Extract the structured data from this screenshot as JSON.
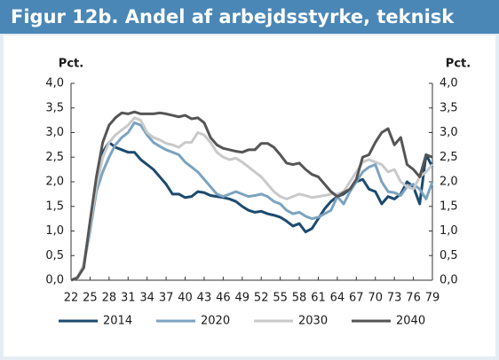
{
  "chart_data": {
    "type": "line",
    "title": "Figur 12b. Andel af arbejdsstyrke, teknisk",
    "y_label": "Pct.",
    "y2_label": "Pct.",
    "x": [
      22,
      23,
      24,
      25,
      26,
      27,
      28,
      29,
      30,
      31,
      32,
      33,
      34,
      35,
      36,
      37,
      38,
      39,
      40,
      41,
      42,
      43,
      44,
      45,
      46,
      47,
      48,
      49,
      50,
      51,
      52,
      53,
      54,
      55,
      56,
      57,
      58,
      59,
      60,
      61,
      62,
      63,
      64,
      65,
      66,
      67,
      68,
      69,
      70,
      71,
      72,
      73,
      74,
      75,
      76,
      77,
      78,
      79
    ],
    "xlim": [
      22,
      79
    ],
    "xticks": [
      22,
      25,
      28,
      31,
      34,
      37,
      40,
      43,
      46,
      49,
      52,
      55,
      58,
      61,
      64,
      67,
      70,
      73,
      76,
      79
    ],
    "ylim": [
      0,
      4
    ],
    "yticks": [
      {
        "value": 0,
        "label": "0,0"
      },
      {
        "value": 0.5,
        "label": "0,5"
      },
      {
        "value": 1,
        "label": "1,0"
      },
      {
        "value": 1.5,
        "label": "1,5"
      },
      {
        "value": 2,
        "label": "2,0"
      },
      {
        "value": 2.5,
        "label": "2,5"
      },
      {
        "value": 3,
        "label": "3,0"
      },
      {
        "value": 3.5,
        "label": "3,5"
      },
      {
        "value": 4,
        "label": "4,0"
      }
    ],
    "y2lim": [
      0,
      4
    ],
    "y2ticks": [
      {
        "value": 0,
        "label": "0,0"
      },
      {
        "value": 0.5,
        "label": "0,5"
      },
      {
        "value": 1,
        "label": "1,0"
      },
      {
        "value": 1.5,
        "label": "1,5"
      },
      {
        "value": 2,
        "label": "2,0"
      },
      {
        "value": 2.5,
        "label": "2,5"
      },
      {
        "value": 3,
        "label": "3,0"
      },
      {
        "value": 3.5,
        "label": "3,5"
      },
      {
        "value": 4,
        "label": "4,0"
      }
    ],
    "legend": "bottom",
    "series": [
      {
        "name": "2014",
        "color": "#1c4a6e",
        "values": [
          0,
          0.05,
          0.3,
          1.1,
          2.0,
          2.6,
          2.8,
          2.7,
          2.65,
          2.6,
          2.6,
          2.45,
          2.35,
          2.25,
          2.1,
          1.95,
          1.75,
          1.75,
          1.68,
          1.7,
          1.8,
          1.78,
          1.72,
          1.7,
          1.68,
          1.65,
          1.6,
          1.5,
          1.42,
          1.38,
          1.4,
          1.35,
          1.32,
          1.28,
          1.2,
          1.1,
          1.15,
          0.98,
          1.05,
          1.25,
          1.45,
          1.6,
          1.7,
          1.75,
          1.85,
          2.0,
          2.05,
          1.85,
          1.8,
          1.55,
          1.7,
          1.65,
          1.75,
          2.0,
          1.9,
          1.55,
          2.55,
          2.3
        ]
      },
      {
        "name": "2020",
        "color": "#7ba3c0",
        "values": [
          0,
          0.05,
          0.3,
          1.0,
          1.8,
          2.2,
          2.5,
          2.75,
          2.9,
          3.0,
          3.2,
          3.15,
          2.95,
          2.8,
          2.72,
          2.65,
          2.6,
          2.55,
          2.4,
          2.3,
          2.2,
          2.05,
          1.9,
          1.75,
          1.7,
          1.75,
          1.8,
          1.75,
          1.7,
          1.72,
          1.75,
          1.7,
          1.6,
          1.55,
          1.42,
          1.35,
          1.38,
          1.3,
          1.25,
          1.28,
          1.35,
          1.42,
          1.7,
          1.55,
          1.8,
          2.0,
          2.2,
          2.3,
          2.35,
          2.0,
          1.8,
          1.78,
          1.72,
          1.9,
          1.95,
          1.85,
          1.65,
          2.0
        ]
      },
      {
        "name": "2030",
        "color": "#c9c9c9",
        "values": [
          0,
          0.05,
          0.3,
          1.1,
          1.9,
          2.5,
          2.8,
          2.95,
          3.05,
          3.15,
          3.3,
          3.25,
          3.0,
          2.9,
          2.85,
          2.78,
          2.75,
          2.7,
          2.8,
          2.8,
          3.0,
          2.95,
          2.8,
          2.6,
          2.5,
          2.45,
          2.48,
          2.4,
          2.3,
          2.2,
          2.1,
          1.95,
          1.8,
          1.7,
          1.65,
          1.7,
          1.75,
          1.72,
          1.68,
          1.7,
          1.72,
          1.75,
          1.75,
          1.8,
          2.0,
          2.2,
          2.4,
          2.45,
          2.4,
          2.35,
          2.2,
          2.25,
          2.0,
          1.9,
          1.85,
          2.1,
          2.2,
          2.35
        ]
      },
      {
        "name": "2040",
        "color": "#555555",
        "values": [
          0,
          0.05,
          0.25,
          1.2,
          2.1,
          2.8,
          3.15,
          3.3,
          3.4,
          3.38,
          3.42,
          3.38,
          3.38,
          3.38,
          3.4,
          3.38,
          3.35,
          3.32,
          3.35,
          3.28,
          3.3,
          3.2,
          2.9,
          2.75,
          2.68,
          2.65,
          2.62,
          2.6,
          2.65,
          2.65,
          2.78,
          2.78,
          2.7,
          2.55,
          2.38,
          2.35,
          2.38,
          2.25,
          2.15,
          2.1,
          1.95,
          1.8,
          1.7,
          1.78,
          1.85,
          2.05,
          2.5,
          2.55,
          2.8,
          3.0,
          3.08,
          2.75,
          2.9,
          2.35,
          2.25,
          2.1,
          2.55,
          2.5
        ]
      }
    ]
  }
}
